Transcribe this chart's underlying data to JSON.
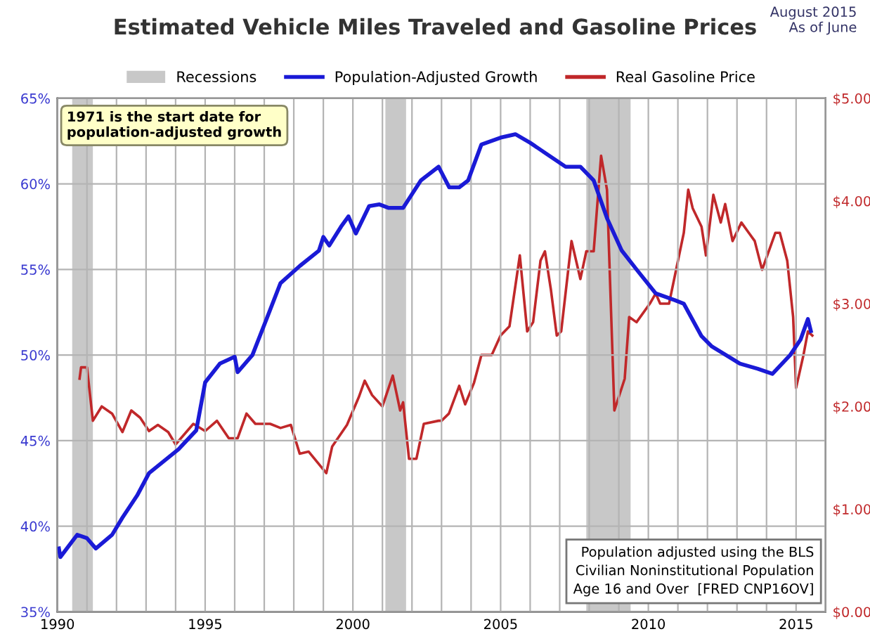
{
  "chart_data": {
    "type": "line",
    "title": "Estimated Vehicle Miles Traveled and Gasoline Prices",
    "annotations": [
      "August 2015\nAs of June",
      "1971 is the start date for\npopulation-adjusted growth",
      "Population adjusted using the BLS\nCivilian Noninstitutional Population\nAge 16 and Over  [FRED CNP16OV]"
    ],
    "xlim": [
      1990,
      2016
    ],
    "xticks": [
      1990,
      {
        "value": 1991,
        "label": null
      },
      {
        "value": 1992,
        "label": null
      },
      {
        "value": 1993,
        "label": null
      },
      {
        "value": 1994,
        "label": null
      },
      1995,
      {
        "value": 1996,
        "label": null
      },
      {
        "value": 1997,
        "label": null
      },
      {
        "value": 1998,
        "label": null
      },
      {
        "value": 1999,
        "label": null
      },
      2000,
      {
        "value": 2001,
        "label": null
      },
      {
        "value": 2002,
        "label": null
      },
      {
        "value": 2003,
        "label": null
      },
      {
        "value": 2004,
        "label": null
      },
      2005,
      {
        "value": 2006,
        "label": null
      },
      {
        "value": 2007,
        "label": null
      },
      {
        "value": 2008,
        "label": null
      },
      {
        "value": 2009,
        "label": null
      },
      2010,
      {
        "value": 2011,
        "label": null
      },
      {
        "value": 2012,
        "label": null
      },
      {
        "value": 2013,
        "label": null
      },
      {
        "value": 2014,
        "label": null
      },
      2015,
      {
        "value": 2016,
        "label": null
      }
    ],
    "ylim": [
      35,
      65
    ],
    "yticks": [
      {
        "value": 35,
        "label": "35%"
      },
      {
        "value": 40,
        "label": "40%"
      },
      {
        "value": 45,
        "label": "45%"
      },
      {
        "value": 50,
        "label": "50%"
      },
      {
        "value": 55,
        "label": "55%"
      },
      {
        "value": 60,
        "label": "60%"
      },
      {
        "value": 65,
        "label": "65%"
      }
    ],
    "y2lim": [
      0,
      5
    ],
    "y2ticks": [
      {
        "value": 0,
        "label": "$0.00"
      },
      {
        "value": 1,
        "label": "$1.00"
      },
      {
        "value": 2,
        "label": "$2.00"
      },
      {
        "value": 3,
        "label": "$3.00"
      },
      {
        "value": 4,
        "label": "$4.00"
      },
      {
        "value": 5,
        "label": "$5.00"
      }
    ],
    "grid": true,
    "legend": "top",
    "marker": "none",
    "line_style": "solid",
    "bands": [
      {
        "axis": "x",
        "from": 1990.5,
        "to": 1991.2,
        "label": "Recessions",
        "color": "#c8c8c8"
      },
      {
        "axis": "x",
        "from": 2001.1,
        "to": 2001.8,
        "color": "#c8c8c8"
      },
      {
        "axis": "x",
        "from": 2007.9,
        "to": 2009.4,
        "color": "#c8c8c8"
      }
    ],
    "series": [
      {
        "name": "Population-Adjusted Growth",
        "color": "#1a1ad6",
        "x": [
          1990.05,
          1990.1,
          1990.67,
          1991.0,
          1991.3,
          1991.85,
          1992.2,
          1992.7,
          1993.1,
          1993.6,
          1994.1,
          1994.7,
          1995.0,
          1995.5,
          1996.0,
          1996.1,
          1996.6,
          1996.85,
          1997.1,
          1997.55,
          1998.2,
          1998.85,
          1999.0,
          1999.2,
          1999.6,
          1999.85,
          2000.1,
          2000.55,
          2000.9,
          2001.2,
          2001.7,
          2002.0,
          2002.3,
          2002.9,
          2003.26,
          2003.6,
          2003.9,
          2004.35,
          2005.0,
          2005.5,
          2006.0,
          2006.6,
          2007.2,
          2007.7,
          2008.15,
          2008.6,
          2009.1,
          2009.6,
          2010.25,
          2010.9,
          2011.2,
          2011.8,
          2012.15,
          2013.1,
          2013.7,
          2014.2,
          2014.8,
          2015.15,
          2015.4,
          2015.5
        ],
        "values": [
          38.7,
          38.2,
          39.5,
          39.3,
          38.7,
          39.5,
          40.5,
          41.8,
          43.1,
          43.8,
          44.5,
          45.6,
          48.4,
          49.5,
          49.9,
          49.0,
          50.0,
          51.1,
          52.2,
          54.2,
          55.2,
          56.1,
          56.9,
          56.4,
          57.5,
          58.1,
          57.1,
          58.7,
          58.8,
          58.6,
          58.6,
          59.4,
          60.2,
          61.0,
          59.8,
          59.8,
          60.2,
          62.3,
          62.7,
          62.9,
          62.4,
          61.7,
          61.0,
          61.0,
          60.2,
          58.0,
          56.1,
          55.0,
          53.6,
          53.2,
          53.0,
          51.1,
          50.5,
          49.5,
          49.2,
          48.9,
          50.0,
          50.9,
          52.1,
          51.4
        ]
      },
      {
        "name": "Real Gasoline Price",
        "color": "#c0282a",
        "axis": "y2",
        "x": [
          1990.75,
          1990.8,
          1991.0,
          1991.2,
          1991.5,
          1991.85,
          1992.2,
          1992.5,
          1992.8,
          1993.1,
          1993.4,
          1993.75,
          1994.0,
          1994.6,
          1995.0,
          1995.4,
          1995.8,
          1996.1,
          1996.4,
          1996.7,
          1997.2,
          1997.55,
          1997.9,
          1998.2,
          1998.5,
          1999.1,
          1999.3,
          1999.8,
          2000.2,
          2000.4,
          2000.65,
          2001.0,
          2001.35,
          2001.6,
          2001.7,
          2001.9,
          2002.15,
          2002.4,
          2002.9,
          2003.0,
          2003.25,
          2003.6,
          2003.8,
          2004.1,
          2004.35,
          2004.7,
          2005.0,
          2005.3,
          2005.65,
          2005.9,
          2006.1,
          2006.35,
          2006.5,
          2006.7,
          2006.9,
          2007.05,
          2007.4,
          2007.7,
          2007.9,
          2008.15,
          2008.4,
          2008.6,
          2008.85,
          2009.2,
          2009.35,
          2009.6,
          2010.05,
          2010.25,
          2010.4,
          2010.7,
          2011.2,
          2011.35,
          2011.5,
          2011.8,
          2011.95,
          2012.2,
          2012.45,
          2012.6,
          2012.85,
          2013.15,
          2013.4,
          2013.6,
          2013.85,
          2014.3,
          2014.45,
          2014.7,
          2014.9,
          2015.0,
          2015.25,
          2015.4,
          2015.55
        ],
        "values": [
          2.27,
          2.38,
          2.38,
          1.86,
          2.0,
          1.93,
          1.75,
          1.96,
          1.89,
          1.76,
          1.82,
          1.75,
          1.63,
          1.83,
          1.76,
          1.86,
          1.69,
          1.69,
          1.93,
          1.83,
          1.83,
          1.79,
          1.82,
          1.54,
          1.56,
          1.35,
          1.61,
          1.82,
          2.09,
          2.25,
          2.11,
          2.0,
          2.3,
          1.96,
          2.04,
          1.49,
          1.49,
          1.83,
          1.86,
          1.86,
          1.93,
          2.2,
          2.02,
          2.23,
          2.5,
          2.5,
          2.69,
          2.78,
          3.47,
          2.73,
          2.82,
          3.42,
          3.51,
          3.14,
          2.69,
          2.73,
          3.61,
          3.24,
          3.51,
          3.51,
          4.44,
          4.11,
          1.96,
          2.27,
          2.87,
          2.82,
          3.0,
          3.1,
          3.0,
          3.0,
          3.69,
          4.11,
          3.93,
          3.75,
          3.47,
          4.06,
          3.79,
          3.97,
          3.61,
          3.79,
          3.69,
          3.61,
          3.33,
          3.69,
          3.69,
          3.42,
          2.87,
          2.18,
          2.5,
          2.73,
          2.69
        ]
      }
    ]
  }
}
